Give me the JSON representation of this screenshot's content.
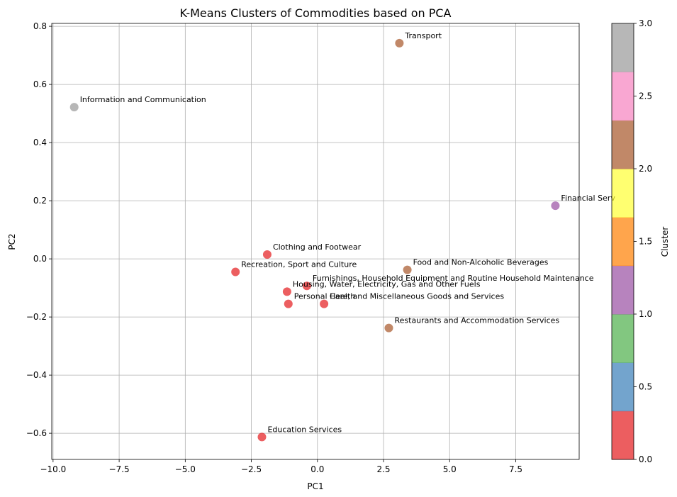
{
  "chart_data": {
    "type": "scatter",
    "title": "K-Means Clusters of Commodities based on PCA",
    "xlabel": "PC1",
    "ylabel": "PC2",
    "xlim": [
      -10.05,
      9.9
    ],
    "ylim": [
      -0.69,
      0.81
    ],
    "xticks": [
      -10.0,
      -7.5,
      -5.0,
      -2.5,
      0.0,
      2.5,
      5.0,
      7.5
    ],
    "xtick_labels": [
      "−10.0",
      "−7.5",
      "−5.0",
      "−2.5",
      "0.0",
      "2.5",
      "5.0",
      "7.5"
    ],
    "yticks": [
      -0.6,
      -0.4,
      -0.2,
      0.0,
      0.2,
      0.4,
      0.6,
      0.8
    ],
    "ytick_labels": [
      "−0.6",
      "−0.4",
      "−0.2",
      "0.0",
      "0.2",
      "0.4",
      "0.6",
      "0.8"
    ],
    "grid": true,
    "points": [
      {
        "label": "Transport",
        "x": 3.1,
        "y": 0.742,
        "cluster": 2
      },
      {
        "label": "Information and Communication",
        "x": -9.2,
        "y": 0.522,
        "cluster": 3
      },
      {
        "label": "Financial Serv",
        "x": 9.0,
        "y": 0.183,
        "cluster": 1
      },
      {
        "label": "Clothing and Footwear",
        "x": -1.9,
        "y": 0.015,
        "cluster": 0
      },
      {
        "label": "Food and Non-Alcoholic Beverages",
        "x": 3.4,
        "y": -0.038,
        "cluster": 2
      },
      {
        "label": "Recreation, Sport and Culture",
        "x": -3.1,
        "y": -0.045,
        "cluster": 0
      },
      {
        "label": "Furnishings, Household Equipment and Routine Household Maintenance",
        "x": -0.4,
        "y": -0.093,
        "cluster": 0
      },
      {
        "label": "Housing, Water, Electricity, Gas and Other Fuels",
        "x": -1.15,
        "y": -0.113,
        "cluster": 0
      },
      {
        "label": "Personal Care, and Miscellaneous Goods and Services",
        "x": -1.1,
        "y": -0.155,
        "cluster": 0
      },
      {
        "label": "Health",
        "x": 0.25,
        "y": -0.155,
        "cluster": 0
      },
      {
        "label": "Restaurants and Accommodation Services",
        "x": 2.7,
        "y": -0.238,
        "cluster": 2
      },
      {
        "label": "Education Services",
        "x": -2.1,
        "y": -0.613,
        "cluster": 0
      }
    ],
    "cluster_colors": {
      "0": "#e41a1c",
      "1": "#984ea3",
      "2": "#a65628",
      "3": "#999999"
    },
    "colorbar": {
      "label": "Cluster",
      "range": [
        0.0,
        3.0
      ],
      "ticks": [
        0.0,
        0.5,
        1.0,
        1.5,
        2.0,
        2.5,
        3.0
      ],
      "tick_labels": [
        "0.0",
        "0.5",
        "1.0",
        "1.5",
        "2.0",
        "2.5",
        "3.0"
      ],
      "colors": [
        "#e41a1c",
        "#377eb8",
        "#4daf4a",
        "#984ea3",
        "#ff7f00",
        "#ffff33",
        "#a65628",
        "#f781bf",
        "#999999"
      ]
    }
  }
}
